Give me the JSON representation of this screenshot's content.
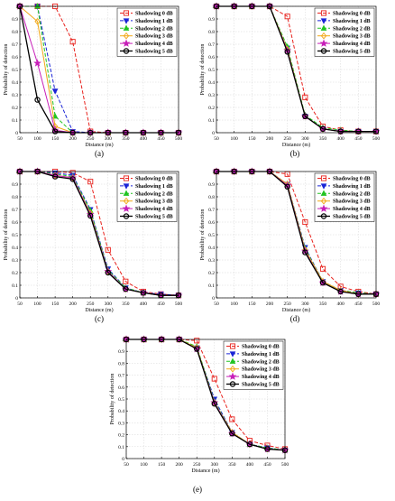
{
  "chart_data": [
    {
      "panel_label": "(a)",
      "type": "line",
      "xlabel": "Distance (m)",
      "ylabel": "Probability of detection",
      "xlim": [
        50,
        500
      ],
      "ylim": [
        0,
        1
      ],
      "x": [
        50,
        100,
        150,
        200,
        250,
        300,
        350,
        400,
        450,
        500
      ],
      "xticks": [
        "50",
        "100",
        "150",
        "200",
        "250",
        "300",
        "350",
        "400",
        "450",
        "500"
      ],
      "yticks": [
        "0",
        "0.1",
        "0.2",
        "0.3",
        "0.4",
        "0.5",
        "0.6",
        "0.7",
        "0.8",
        "0.9",
        "1"
      ],
      "grid": true,
      "legend_position": "top-right",
      "series": [
        {
          "name": "Shadowing 0 dB",
          "color": "#e8221d",
          "marker": "square",
          "dash": "4,2",
          "values": [
            1,
            1,
            1,
            0.72,
            0.01,
            0,
            0,
            0,
            0,
            0
          ]
        },
        {
          "name": "Shadowing 1 dB",
          "color": "#1a24d6",
          "marker": "triangle-down",
          "dash": "4,2",
          "values": [
            1,
            1,
            0.33,
            0.01,
            0,
            0,
            0,
            0,
            0,
            0
          ]
        },
        {
          "name": "Shadowing 2 dB",
          "color": "#22c422",
          "marker": "triangle-up",
          "dash": "4,2",
          "values": [
            1,
            1,
            0.13,
            0,
            0,
            0,
            0,
            0,
            0,
            0
          ]
        },
        {
          "name": "Shadowing 3 dB",
          "color": "#f2a818",
          "marker": "diamond",
          "dash": "",
          "values": [
            1,
            0.88,
            0.05,
            0,
            0,
            0,
            0,
            0,
            0,
            0
          ]
        },
        {
          "name": "Shadowing 4 dB",
          "color": "#c71fb8",
          "marker": "star",
          "dash": "",
          "values": [
            1,
            0.55,
            0.02,
            0,
            0,
            0,
            0,
            0,
            0,
            0
          ]
        },
        {
          "name": "Shadowing 5 dB",
          "color": "#000000",
          "marker": "circle",
          "dash": "",
          "values": [
            1,
            0.26,
            0.01,
            0,
            0,
            0,
            0,
            0,
            0,
            0
          ]
        }
      ]
    },
    {
      "panel_label": "(b)",
      "type": "line",
      "xlabel": "Distance (m)",
      "ylabel": "Probability of detection",
      "xlim": [
        50,
        500
      ],
      "ylim": [
        0,
        1
      ],
      "x": [
        50,
        100,
        150,
        200,
        250,
        300,
        350,
        400,
        450,
        500
      ],
      "xticks": [
        "50",
        "100",
        "150",
        "200",
        "250",
        "300",
        "350",
        "400",
        "450",
        "500"
      ],
      "yticks": [
        "0",
        "0.1",
        "0.2",
        "0.3",
        "0.4",
        "0.5",
        "0.6",
        "0.7",
        "0.8",
        "0.9",
        "1"
      ],
      "grid": true,
      "legend_position": "top-right",
      "series": [
        {
          "name": "Shadowing 0 dB",
          "color": "#e8221d",
          "marker": "square",
          "dash": "4,2",
          "values": [
            1,
            1,
            1,
            1,
            0.92,
            0.28,
            0.05,
            0.02,
            0.01,
            0.01
          ]
        },
        {
          "name": "Shadowing 1 dB",
          "color": "#1a24d6",
          "marker": "triangle-down",
          "dash": "4,2",
          "values": [
            1,
            1,
            1,
            1,
            0.67,
            0.13,
            0.03,
            0.01,
            0.01,
            0.01
          ]
        },
        {
          "name": "Shadowing 2 dB",
          "color": "#22c422",
          "marker": "triangle-up",
          "dash": "4,2",
          "values": [
            1,
            1,
            1,
            1,
            0.68,
            0.14,
            0.04,
            0.02,
            0.01,
            0.01
          ]
        },
        {
          "name": "Shadowing 3 dB",
          "color": "#f2a818",
          "marker": "diamond",
          "dash": "",
          "values": [
            1,
            1,
            1,
            1,
            0.66,
            0.13,
            0.03,
            0.01,
            0.01,
            0.01
          ]
        },
        {
          "name": "Shadowing 4 dB",
          "color": "#c71fb8",
          "marker": "star",
          "dash": "",
          "values": [
            1,
            1,
            1,
            1,
            0.65,
            0.13,
            0.03,
            0.01,
            0.01,
            0.01
          ]
        },
        {
          "name": "Shadowing 5 dB",
          "color": "#000000",
          "marker": "circle",
          "dash": "",
          "values": [
            1,
            1,
            1,
            1,
            0.64,
            0.13,
            0.03,
            0.01,
            0.01,
            0.01
          ]
        }
      ]
    },
    {
      "panel_label": "(c)",
      "type": "line",
      "xlabel": "Distance (m)",
      "ylabel": "Probability of detection",
      "xlim": [
        50,
        500
      ],
      "ylim": [
        0,
        1
      ],
      "x": [
        50,
        100,
        150,
        200,
        250,
        300,
        350,
        400,
        450,
        500
      ],
      "xticks": [
        "50",
        "100",
        "150",
        "200",
        "250",
        "300",
        "350",
        "400",
        "450",
        "500"
      ],
      "yticks": [
        "0",
        "0.1",
        "0.2",
        "0.3",
        "0.4",
        "0.5",
        "0.6",
        "0.7",
        "0.8",
        "0.9",
        "1"
      ],
      "grid": true,
      "legend_position": "top-right",
      "series": [
        {
          "name": "Shadowing 0 dB",
          "color": "#e8221d",
          "marker": "square",
          "dash": "4,2",
          "values": [
            1,
            1,
            1,
            0.99,
            0.92,
            0.38,
            0.13,
            0.05,
            0.03,
            0.02
          ]
        },
        {
          "name": "Shadowing 1 dB",
          "color": "#1a24d6",
          "marker": "triangle-down",
          "dash": "4,2",
          "values": [
            1,
            1,
            0.99,
            0.97,
            0.7,
            0.23,
            0.08,
            0.04,
            0.03,
            0.02
          ]
        },
        {
          "name": "Shadowing 2 dB",
          "color": "#22c422",
          "marker": "triangle-up",
          "dash": "4,2",
          "values": [
            1,
            1,
            0.98,
            0.96,
            0.69,
            0.22,
            0.08,
            0.04,
            0.02,
            0.02
          ]
        },
        {
          "name": "Shadowing 3 dB",
          "color": "#f2a818",
          "marker": "diamond",
          "dash": "",
          "values": [
            1,
            1,
            0.97,
            0.95,
            0.67,
            0.21,
            0.07,
            0.04,
            0.02,
            0.02
          ]
        },
        {
          "name": "Shadowing 4 dB",
          "color": "#c71fb8",
          "marker": "star",
          "dash": "",
          "values": [
            1,
            1,
            0.97,
            0.95,
            0.66,
            0.21,
            0.07,
            0.04,
            0.02,
            0.02
          ]
        },
        {
          "name": "Shadowing 5 dB",
          "color": "#000000",
          "marker": "circle",
          "dash": "",
          "values": [
            1,
            1,
            0.96,
            0.94,
            0.65,
            0.2,
            0.07,
            0.04,
            0.02,
            0.02
          ]
        }
      ]
    },
    {
      "panel_label": "(d)",
      "type": "line",
      "xlabel": "Distance (m)",
      "ylabel": "Probability of detection",
      "xlim": [
        50,
        500
      ],
      "ylim": [
        0,
        1
      ],
      "x": [
        50,
        100,
        150,
        200,
        250,
        300,
        350,
        400,
        450,
        500
      ],
      "xticks": [
        "50",
        "100",
        "150",
        "200",
        "250",
        "300",
        "350",
        "400",
        "450",
        "500"
      ],
      "yticks": [
        "0",
        "0.1",
        "0.2",
        "0.3",
        "0.4",
        "0.5",
        "0.6",
        "0.7",
        "0.8",
        "0.9",
        "1"
      ],
      "grid": true,
      "legend_position": "top-right",
      "series": [
        {
          "name": "Shadowing 0 dB",
          "color": "#e8221d",
          "marker": "square",
          "dash": "4,2",
          "values": [
            1,
            1,
            1,
            1,
            0.98,
            0.6,
            0.23,
            0.09,
            0.05,
            0.03
          ]
        },
        {
          "name": "Shadowing 1 dB",
          "color": "#1a24d6",
          "marker": "triangle-down",
          "dash": "4,2",
          "values": [
            1,
            1,
            1,
            1,
            0.9,
            0.4,
            0.13,
            0.06,
            0.04,
            0.03
          ]
        },
        {
          "name": "Shadowing 2 dB",
          "color": "#22c422",
          "marker": "triangle-up",
          "dash": "4,2",
          "values": [
            1,
            1,
            1,
            1,
            0.9,
            0.39,
            0.13,
            0.06,
            0.04,
            0.03
          ]
        },
        {
          "name": "Shadowing 3 dB",
          "color": "#f2a818",
          "marker": "diamond",
          "dash": "",
          "values": [
            1,
            1,
            1,
            1,
            0.9,
            0.38,
            0.13,
            0.06,
            0.03,
            0.03
          ]
        },
        {
          "name": "Shadowing 4 dB",
          "color": "#c71fb8",
          "marker": "star",
          "dash": "",
          "values": [
            1,
            1,
            1,
            1,
            0.89,
            0.37,
            0.12,
            0.05,
            0.03,
            0.03
          ]
        },
        {
          "name": "Shadowing 5 dB",
          "color": "#000000",
          "marker": "circle",
          "dash": "",
          "values": [
            1,
            1,
            1,
            1,
            0.88,
            0.36,
            0.12,
            0.05,
            0.03,
            0.03
          ]
        }
      ]
    },
    {
      "panel_label": "(e)",
      "type": "line",
      "xlabel": "Distance (m)",
      "ylabel": "Probability of detection",
      "xlim": [
        50,
        500
      ],
      "ylim": [
        0,
        1
      ],
      "x": [
        50,
        100,
        150,
        200,
        250,
        300,
        350,
        400,
        450,
        500
      ],
      "xticks": [
        "50",
        "100",
        "150",
        "200",
        "250",
        "300",
        "350",
        "400",
        "450",
        "500"
      ],
      "yticks": [
        "0",
        "0.1",
        "0.2",
        "0.3",
        "0.4",
        "0.5",
        "0.6",
        "0.7",
        "0.8",
        "0.9",
        "1"
      ],
      "grid": true,
      "legend_position": "top-right",
      "series": [
        {
          "name": "Shadowing 0 dB",
          "color": "#e8221d",
          "marker": "square",
          "dash": "4,2",
          "values": [
            1,
            1,
            1,
            1,
            0.99,
            0.67,
            0.33,
            0.15,
            0.11,
            0.08
          ]
        },
        {
          "name": "Shadowing 1 dB",
          "color": "#1a24d6",
          "marker": "triangle-down",
          "dash": "4,2",
          "values": [
            1,
            1,
            1,
            1,
            0.93,
            0.5,
            0.22,
            0.12,
            0.09,
            0.07
          ]
        },
        {
          "name": "Shadowing 2 dB",
          "color": "#22c422",
          "marker": "triangle-up",
          "dash": "4,2",
          "values": [
            1,
            1,
            1,
            1,
            0.94,
            0.48,
            0.22,
            0.12,
            0.09,
            0.07
          ]
        },
        {
          "name": "Shadowing 3 dB",
          "color": "#f2a818",
          "marker": "diamond",
          "dash": "",
          "values": [
            1,
            1,
            1,
            1,
            0.93,
            0.47,
            0.22,
            0.12,
            0.08,
            0.07
          ]
        },
        {
          "name": "Shadowing 4 dB",
          "color": "#c71fb8",
          "marker": "star",
          "dash": "",
          "values": [
            1,
            1,
            1,
            1,
            0.92,
            0.47,
            0.21,
            0.12,
            0.08,
            0.07
          ]
        },
        {
          "name": "Shadowing 5 dB",
          "color": "#000000",
          "marker": "circle",
          "dash": "",
          "values": [
            1,
            1,
            1,
            1,
            0.92,
            0.46,
            0.21,
            0.12,
            0.08,
            0.07
          ]
        }
      ]
    }
  ]
}
